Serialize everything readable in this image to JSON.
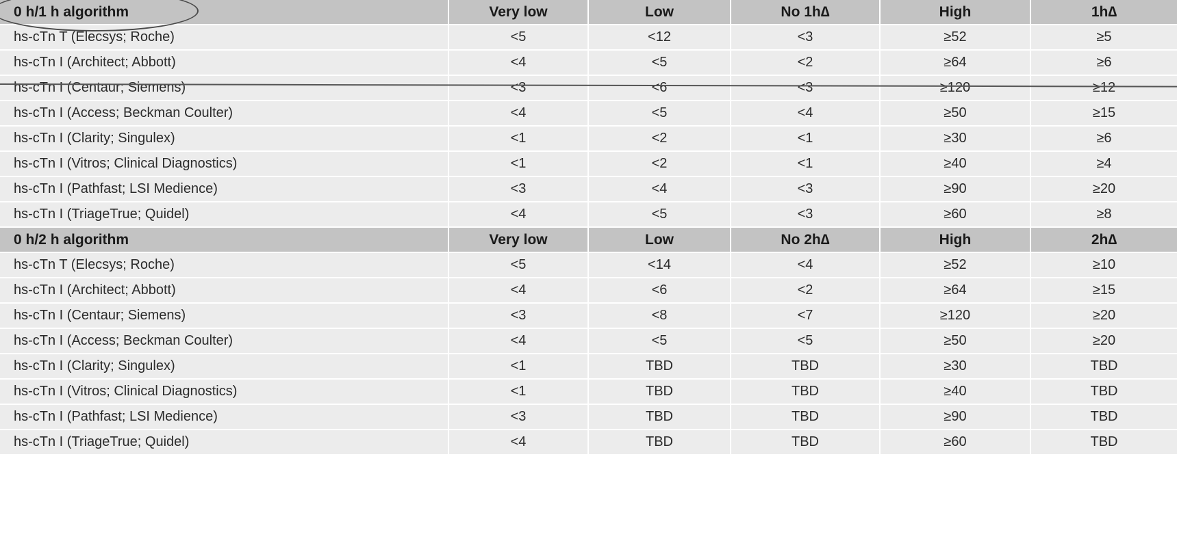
{
  "sections": [
    {
      "header": [
        "0 h/1 h algorithm",
        "Very low",
        "Low",
        "No 1h∆",
        "High",
        "1h∆"
      ],
      "rows": [
        [
          "hs-cTn T (Elecsys; Roche)",
          "<5",
          "<12",
          "<3",
          "≥52",
          "≥5"
        ],
        [
          "hs-cTn I (Architect; Abbott)",
          "<4",
          "<5",
          "<2",
          "≥64",
          "≥6"
        ],
        [
          "hs-cTn I (Centaur; Siemens)",
          "<3",
          "<6",
          "<3",
          "≥120",
          "≥12"
        ],
        [
          "hs-cTn I (Access; Beckman Coulter)",
          "<4",
          "<5",
          "<4",
          "≥50",
          "≥15"
        ],
        [
          "hs-cTn I (Clarity; Singulex)",
          "<1",
          "<2",
          "<1",
          "≥30",
          "≥6"
        ],
        [
          "hs-cTn I (Vitros; Clinical Diagnostics)",
          "<1",
          "<2",
          "<1",
          "≥40",
          "≥4"
        ],
        [
          "hs-cTn I (Pathfast; LSI Medience)",
          "<3",
          "<4",
          "<3",
          "≥90",
          "≥20"
        ],
        [
          "hs-cTn I (TriageTrue; Quidel)",
          "<4",
          "<5",
          "<3",
          "≥60",
          "≥8"
        ]
      ]
    },
    {
      "header": [
        "0 h/2 h algorithm",
        "Very low",
        "Low",
        "No 2h∆",
        "High",
        "2h∆"
      ],
      "rows": [
        [
          "hs-cTn T (Elecsys; Roche)",
          "<5",
          "<14",
          "<4",
          "≥52",
          "≥10"
        ],
        [
          "hs-cTn I (Architect; Abbott)",
          "<4",
          "<6",
          "<2",
          "≥64",
          "≥15"
        ],
        [
          "hs-cTn I (Centaur; Siemens)",
          "<3",
          "<8",
          "<7",
          "≥120",
          "≥20"
        ],
        [
          "hs-cTn I (Access; Beckman Coulter)",
          "<4",
          "<5",
          "<5",
          "≥50",
          "≥20"
        ],
        [
          "hs-cTn I (Clarity; Singulex)",
          "<1",
          "TBD",
          "TBD",
          "≥30",
          "TBD"
        ],
        [
          "hs-cTn I (Vitros; Clinical Diagnostics)",
          "<1",
          "TBD",
          "TBD",
          "≥40",
          "TBD"
        ],
        [
          "hs-cTn I (Pathfast; LSI Medience)",
          "<3",
          "TBD",
          "TBD",
          "≥90",
          "TBD"
        ],
        [
          "hs-cTn I (TriageTrue; Quidel)",
          "<4",
          "TBD",
          "TBD",
          "≥60",
          "TBD"
        ]
      ]
    }
  ]
}
